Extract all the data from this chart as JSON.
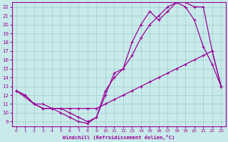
{
  "xlabel": "Windchill (Refroidissement éolien,°C)",
  "xlim": [
    -0.5,
    23.5
  ],
  "ylim": [
    8.5,
    22.5
  ],
  "yticks": [
    9,
    10,
    11,
    12,
    13,
    14,
    15,
    16,
    17,
    18,
    19,
    20,
    21,
    22
  ],
  "xticks": [
    0,
    1,
    2,
    3,
    4,
    5,
    6,
    7,
    8,
    9,
    10,
    11,
    12,
    13,
    14,
    15,
    16,
    17,
    18,
    19,
    20,
    21,
    22,
    23
  ],
  "bg_color": "#c8eaea",
  "line_color": "#990099",
  "grid_color": "#a0cccc",
  "line1_x": [
    0,
    1,
    2,
    3,
    4,
    5,
    6,
    7,
    8,
    9,
    10,
    11,
    12,
    13,
    14,
    15,
    16,
    17,
    18,
    19,
    20,
    21,
    22,
    23
  ],
  "line1_y": [
    12.5,
    12.0,
    11.0,
    10.5,
    10.5,
    10.5,
    10.5,
    10.5,
    10.5,
    10.5,
    11.0,
    11.5,
    12.0,
    12.5,
    13.0,
    13.5,
    14.0,
    14.5,
    15.0,
    15.5,
    16.0,
    16.5,
    17.0,
    13.0
  ],
  "line2_x": [
    0,
    1,
    2,
    3,
    4,
    5,
    6,
    7,
    8,
    9,
    10,
    11,
    12,
    13,
    14,
    15,
    16,
    17,
    18,
    19,
    20,
    21,
    22,
    23
  ],
  "line2_y": [
    12.5,
    12.0,
    11.0,
    10.5,
    10.5,
    10.0,
    9.5,
    9.0,
    8.8,
    9.5,
    12.0,
    14.5,
    15.0,
    18.0,
    20.0,
    21.5,
    20.5,
    21.5,
    22.5,
    22.0,
    20.5,
    17.5,
    15.5,
    13.0
  ],
  "line3_x": [
    0,
    2,
    3,
    4,
    5,
    6,
    7,
    8,
    9,
    10,
    11,
    12,
    13,
    14,
    15,
    16,
    17,
    18,
    19,
    20,
    21,
    22,
    23
  ],
  "line3_y": [
    12.5,
    11.0,
    11.0,
    10.5,
    10.5,
    10.0,
    9.5,
    9.0,
    9.5,
    12.5,
    14.0,
    15.0,
    16.5,
    18.5,
    20.0,
    21.0,
    22.0,
    22.5,
    22.5,
    22.0,
    22.0,
    17.0,
    13.0
  ]
}
